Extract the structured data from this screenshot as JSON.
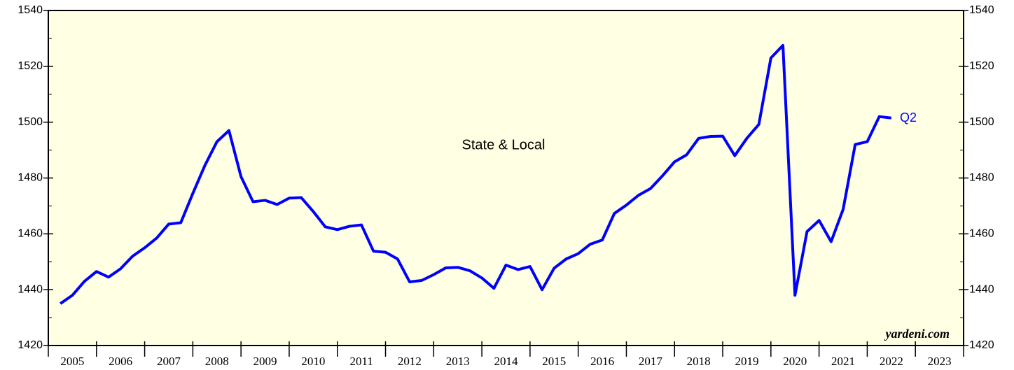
{
  "chart_data": {
    "type": "line",
    "annotations": [
      "State & Local",
      "Q2",
      "yardeni.com"
    ],
    "x": [
      2005.25,
      2005.5,
      2005.75,
      2006,
      2006.25,
      2006.5,
      2006.75,
      2007,
      2007.25,
      2007.5,
      2007.75,
      2008,
      2008.25,
      2008.5,
      2008.75,
      2009,
      2009.25,
      2009.5,
      2009.75,
      2010,
      2010.25,
      2010.5,
      2010.75,
      2011,
      2011.25,
      2011.5,
      2011.75,
      2012,
      2012.25,
      2012.5,
      2012.75,
      2013,
      2013.25,
      2013.5,
      2013.75,
      2014,
      2014.25,
      2014.5,
      2014.75,
      2015,
      2015.25,
      2015.5,
      2015.75,
      2016,
      2016.25,
      2016.5,
      2016.75,
      2017,
      2017.25,
      2017.5,
      2017.75,
      2018,
      2018.25,
      2018.5,
      2018.75,
      2019,
      2019.25,
      2019.5,
      2019.75,
      2020,
      2020.25,
      2020.5,
      2020.75,
      2021,
      2021.25,
      2021.5,
      2021.75,
      2022,
      2022.25,
      2022.5
    ],
    "series": [
      {
        "name": "State & Local",
        "color": "#0000ff",
        "values": [
          1435,
          1438,
          1443,
          1446.5,
          1444.5,
          1447.5,
          1452,
          1455,
          1458.5,
          1463.5,
          1464,
          1474.5,
          1484.5,
          1493,
          1497,
          1480.5,
          1471.5,
          1472,
          1470.5,
          1472.8,
          1473,
          1468,
          1462.5,
          1461.5,
          1462.7,
          1463.2,
          1453.8,
          1453.4,
          1451,
          1442.8,
          1443.3,
          1445.4,
          1447.8,
          1448,
          1446.8,
          1444.2,
          1440.5,
          1448.8,
          1447.2,
          1448.3,
          1440,
          1447.7,
          1451,
          1452.9,
          1456.3,
          1457.8,
          1467.3,
          1470.3,
          1473.8,
          1476.2,
          1480.8,
          1485.8,
          1488.3,
          1494.2,
          1494.9,
          1495,
          1488,
          1494.2,
          1499.2,
          1523,
          1527.5,
          1438,
          1460.8,
          1464.8,
          1457.2,
          1468.8,
          1492,
          1493,
          1502,
          1501.5
        ]
      }
    ],
    "xlim": [
      2005,
      2024
    ],
    "xticks": [
      2005,
      2006,
      2007,
      2008,
      2009,
      2010,
      2011,
      2012,
      2013,
      2014,
      2015,
      2016,
      2017,
      2018,
      2019,
      2020,
      2021,
      2022,
      2023,
      2024
    ],
    "xtick_labels": [
      "2005",
      "2006",
      "2007",
      "2008",
      "2009",
      "2010",
      "2011",
      "2012",
      "2013",
      "2014",
      "2015",
      "2016",
      "2017",
      "2018",
      "2019",
      "2020",
      "2021",
      "2022",
      "2023"
    ],
    "ylim": [
      1420,
      1540
    ],
    "yticks": [
      1420,
      1440,
      1460,
      1480,
      1500,
      1520,
      1540
    ],
    "yticks_minor": [
      1430,
      1450,
      1470,
      1490,
      1510,
      1530
    ],
    "y2lim": [
      1420,
      1540
    ],
    "y2ticks": [
      1420,
      1440,
      1460,
      1480,
      1500,
      1520,
      1540
    ],
    "background": "#ffffe3"
  }
}
